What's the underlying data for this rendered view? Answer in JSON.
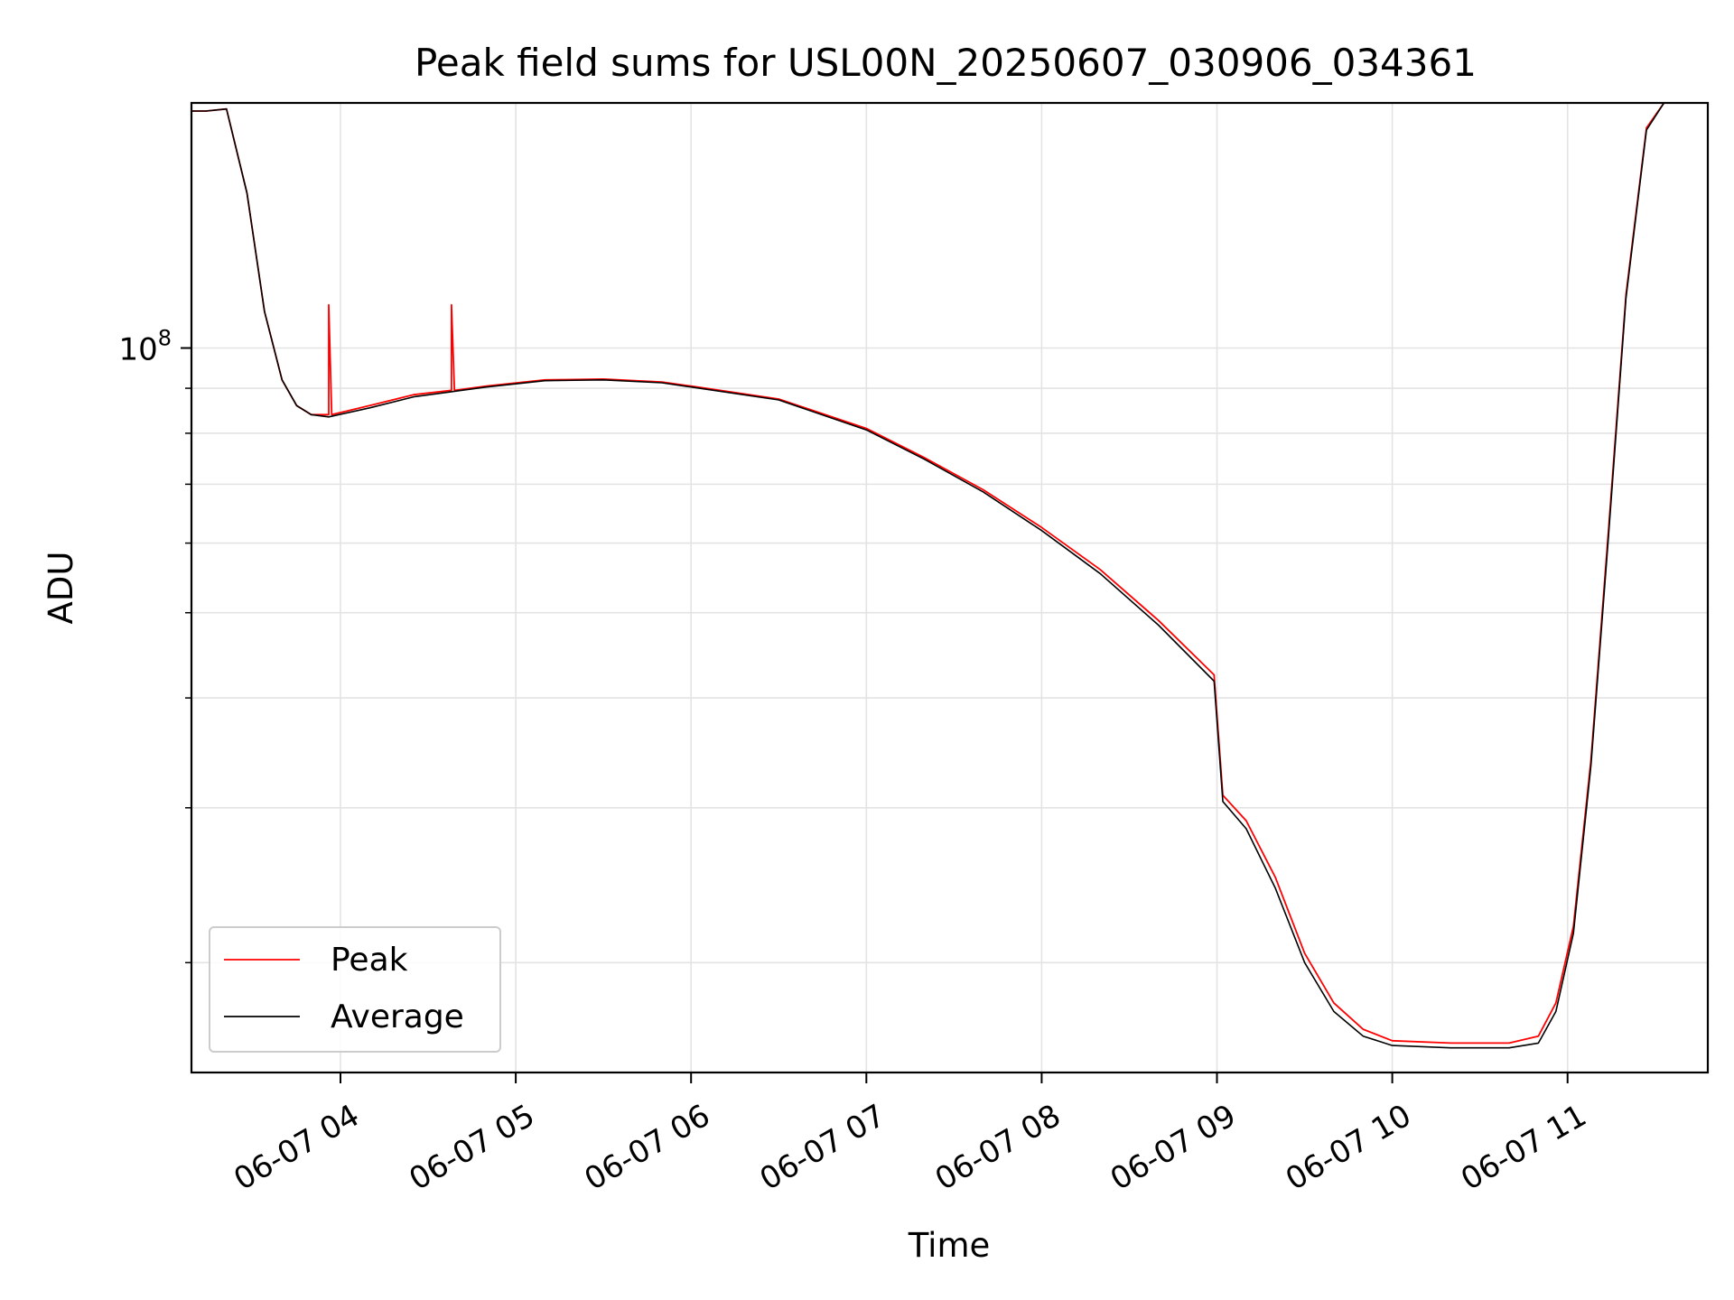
{
  "chart_data": {
    "type": "line",
    "title": "Peak field sums for USL00N_20250607_030906_034361",
    "xlabel": "Time",
    "ylabel": "ADU",
    "yscale": "log",
    "ylim": [
      15000000,
      190000000
    ],
    "xlim": [
      "2025-06-07 03:09",
      "2025-06-07 11:48"
    ],
    "x_ticks": [
      {
        "x": "2025-06-07 04:00",
        "label": "06-07 04"
      },
      {
        "x": "2025-06-07 05:00",
        "label": "06-07 05"
      },
      {
        "x": "2025-06-07 06:00",
        "label": "06-07 06"
      },
      {
        "x": "2025-06-07 07:00",
        "label": "06-07 07"
      },
      {
        "x": "2025-06-07 08:00",
        "label": "06-07 08"
      },
      {
        "x": "2025-06-07 09:00",
        "label": "06-07 09"
      },
      {
        "x": "2025-06-07 10:00",
        "label": "06-07 10"
      },
      {
        "x": "2025-06-07 11:00",
        "label": "06-07 11"
      }
    ],
    "y_ticks": [
      {
        "value": 100000000,
        "base": "10",
        "exp": "8"
      }
    ],
    "grid": true,
    "legend": "lower-left",
    "series": [
      {
        "name": "Peak",
        "color": "#ff0000",
        "x": [
          "2025-06-07 03:09",
          "2025-06-07 03:14",
          "2025-06-07 03:21",
          "2025-06-07 03:28",
          "2025-06-07 03:34",
          "2025-06-07 03:40",
          "2025-06-07 03:45",
          "2025-06-07 03:50",
          "2025-06-07 03:55",
          "2025-06-07 03:56",
          "2025-06-07 03:56",
          "2025-06-07 03:57",
          "2025-06-07 04:10",
          "2025-06-07 04:25",
          "2025-06-07 04:38",
          "2025-06-07 04:38",
          "2025-06-07 04:39",
          "2025-06-07 04:50",
          "2025-06-07 05:10",
          "2025-06-07 05:30",
          "2025-06-07 05:50",
          "2025-06-07 06:00",
          "2025-06-07 06:30",
          "2025-06-07 07:00",
          "2025-06-07 07:20",
          "2025-06-07 07:40",
          "2025-06-07 08:00",
          "2025-06-07 08:20",
          "2025-06-07 08:40",
          "2025-06-07 08:59",
          "2025-06-07 09:02",
          "2025-06-07 09:10",
          "2025-06-07 09:20",
          "2025-06-07 09:30",
          "2025-06-07 09:40",
          "2025-06-07 09:50",
          "2025-06-07 10:00",
          "2025-06-07 10:20",
          "2025-06-07 10:40",
          "2025-06-07 10:50",
          "2025-06-07 10:56",
          "2025-06-07 11:02",
          "2025-06-07 11:08",
          "2025-06-07 11:14",
          "2025-06-07 11:20",
          "2025-06-07 11:27",
          "2025-06-07 11:33"
        ],
        "y": [
          186000000,
          186000000,
          187000000,
          150000000,
          110000000,
          92000000,
          86000000,
          84000000,
          84000000,
          84000000,
          112000000,
          84000000,
          86000000,
          88500000,
          89500000,
          112000000,
          89500000,
          90500000,
          92000000,
          92200000,
          91500000,
          90500000,
          87500000,
          81000000,
          75000000,
          69000000,
          62500000,
          56000000,
          49000000,
          42500000,
          31000000,
          29000000,
          25000000,
          20500000,
          18000000,
          16800000,
          16300000,
          16200000,
          16200000,
          16500000,
          18000000,
          22000000,
          34000000,
          62000000,
          115000000,
          178000000,
          190000000
        ]
      },
      {
        "name": "Average",
        "color": "#000000",
        "x": [
          "2025-06-07 03:09",
          "2025-06-07 03:14",
          "2025-06-07 03:21",
          "2025-06-07 03:28",
          "2025-06-07 03:34",
          "2025-06-07 03:40",
          "2025-06-07 03:45",
          "2025-06-07 03:50",
          "2025-06-07 03:56",
          "2025-06-07 04:10",
          "2025-06-07 04:25",
          "2025-06-07 04:38",
          "2025-06-07 04:50",
          "2025-06-07 05:10",
          "2025-06-07 05:30",
          "2025-06-07 05:50",
          "2025-06-07 06:00",
          "2025-06-07 06:30",
          "2025-06-07 07:00",
          "2025-06-07 07:20",
          "2025-06-07 07:40",
          "2025-06-07 08:00",
          "2025-06-07 08:20",
          "2025-06-07 08:40",
          "2025-06-07 08:59",
          "2025-06-07 09:02",
          "2025-06-07 09:10",
          "2025-06-07 09:20",
          "2025-06-07 09:30",
          "2025-06-07 09:40",
          "2025-06-07 09:50",
          "2025-06-07 10:00",
          "2025-06-07 10:20",
          "2025-06-07 10:40",
          "2025-06-07 10:50",
          "2025-06-07 10:56",
          "2025-06-07 11:02",
          "2025-06-07 11:08",
          "2025-06-07 11:14",
          "2025-06-07 11:20",
          "2025-06-07 11:27",
          "2025-06-07 11:33"
        ],
        "y": [
          186000000,
          186000000,
          187000000,
          150000000,
          110000000,
          92000000,
          86000000,
          84000000,
          83500000,
          85500000,
          88000000,
          89200000,
          90300000,
          91800000,
          92000000,
          91300000,
          90300000,
          87300000,
          80700000,
          74700000,
          68600000,
          62000000,
          55400000,
          48400000,
          41800000,
          30500000,
          28400000,
          24300000,
          20000000,
          17600000,
          16500000,
          16100000,
          16000000,
          16000000,
          16200000,
          17600000,
          21600000,
          33500000,
          61000000,
          114000000,
          177000000,
          190000000
        ]
      }
    ]
  }
}
